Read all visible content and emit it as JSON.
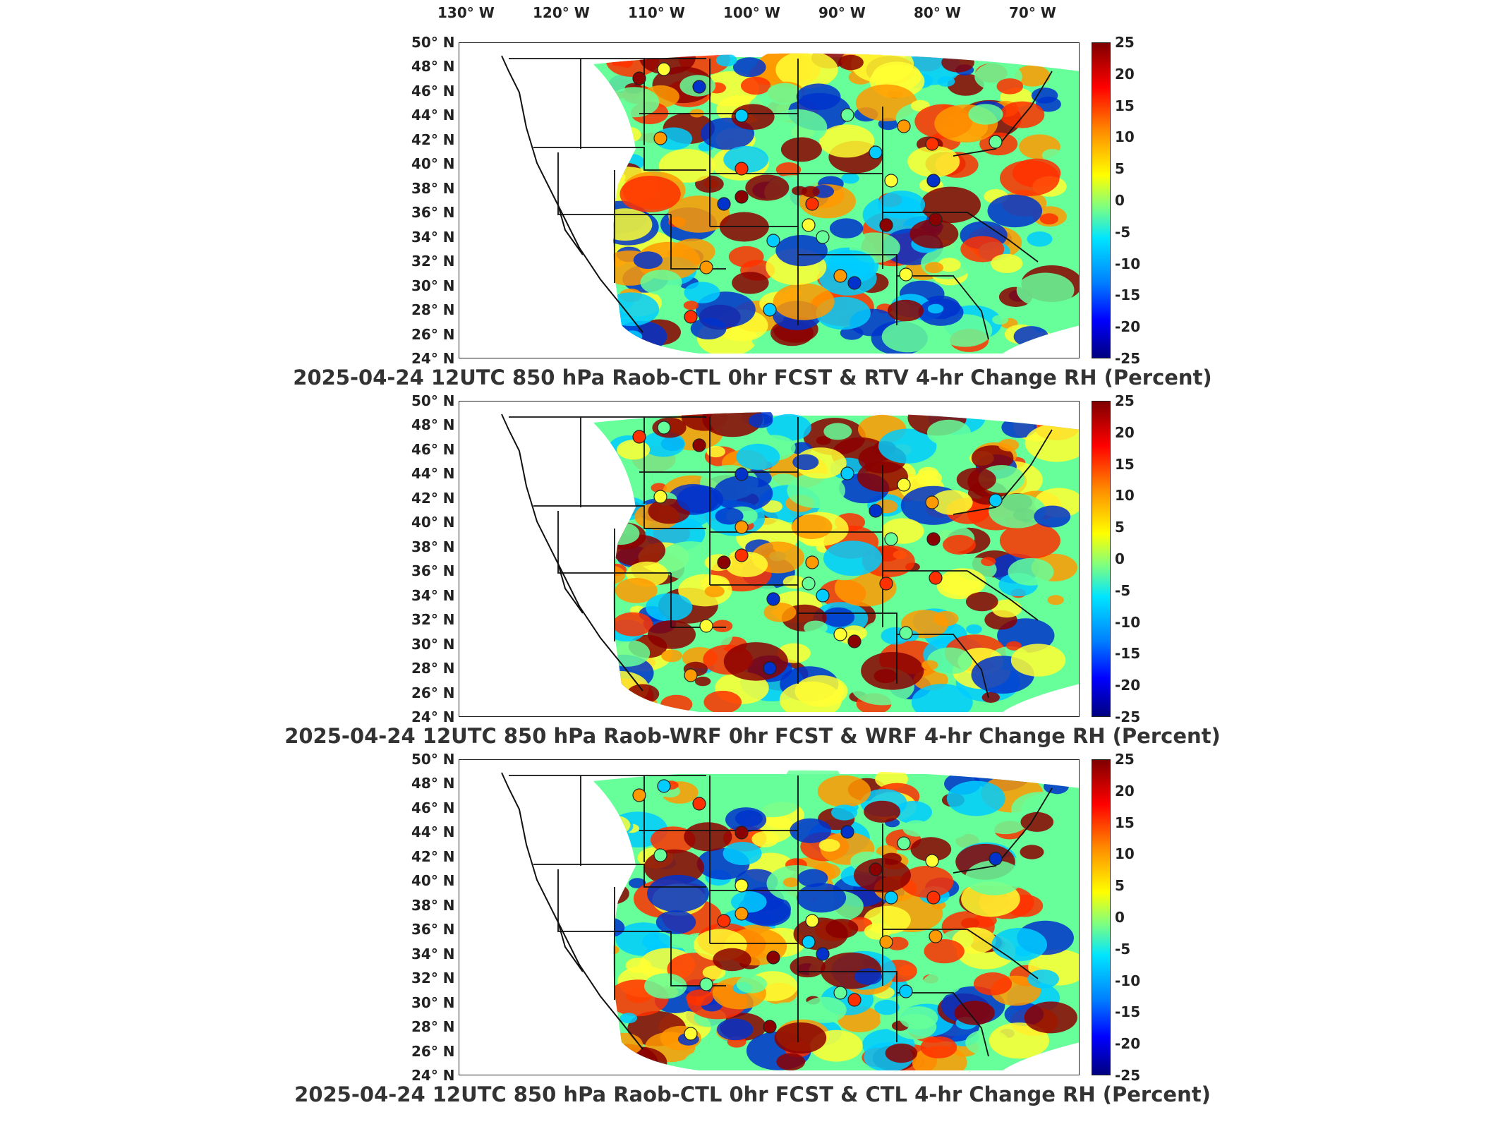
{
  "lon_labels": [
    "130° W",
    "120° W",
    "110° W",
    "100° W",
    "90° W",
    "80° W",
    "70° W"
  ],
  "lat_labels": [
    "50° N",
    "48° N",
    "46° N",
    "44° N",
    "42° N",
    "40° N",
    "38° N",
    "36° N",
    "34° N",
    "32° N",
    "30° N",
    "28° N",
    "26° N",
    "24° N"
  ],
  "colorbar_ticks": [
    "25",
    "20",
    "15",
    "10",
    "5",
    "0",
    "-5",
    "-10",
    "-15",
    "-20",
    "-25"
  ],
  "colors": {
    "strong_pos": "#8b0000",
    "pos": "#ff3000",
    "mid_pos": "#ff9900",
    "neutral": "#ffff33",
    "mid_neg": "#66ff99",
    "neg": "#00ccff",
    "strong_neg": "#0033cc"
  },
  "panels": [
    {
      "title": "2025-04-24 12UTC 850 hPa Raob-CTL 0hr FCST & RTV 4-hr Change RH (Percent)"
    },
    {
      "title": "2025-04-24 12UTC 850 hPa Raob-WRF 0hr FCST & WRF 4-hr Change RH (Percent)"
    },
    {
      "title": "2025-04-24 12UTC 850 hPa Raob-CTL 0hr FCST & CTL 4-hr Change RH (Percent)"
    }
  ]
}
